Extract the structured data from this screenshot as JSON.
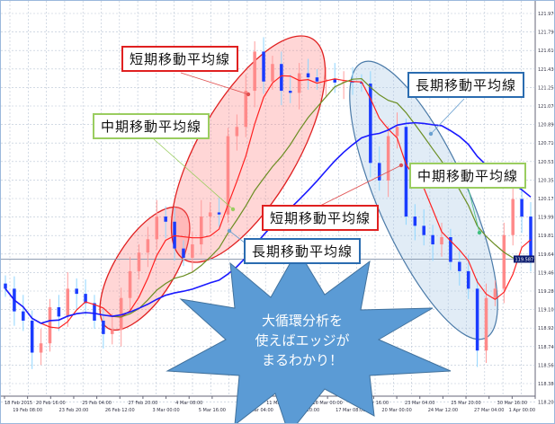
{
  "chart_data": {
    "type": "candlestick",
    "title": "",
    "y_ticks": [
      "121.970",
      "121.790",
      "121.610",
      "121.430",
      "121.250",
      "121.070",
      "120.890",
      "120.710",
      "120.535",
      "120.355",
      "120.175",
      "119.995",
      "119.815",
      "119.640",
      "119.460",
      "119.280",
      "119.100",
      "118.920",
      "118.740",
      "118.560",
      "118.380",
      "118.200"
    ],
    "ylim": [
      118.2,
      121.97
    ],
    "x_ticks": [
      "18 Feb 2015",
      "19 Feb 08:00",
      "20 Feb 16:00",
      "23 Feb 20:00",
      "25 Feb 04:00",
      "26 Feb 12:00",
      "27 Feb 20:00",
      "3 Mar 00:00",
      "4 Mar 08:00",
      "5 Mar 16:00",
      "",
      "10 Mar 04:00",
      "11 Mar 12:00",
      "12 Mar 20:00",
      "16 Mar 00:00",
      "17 Mar 08:00",
      "18 Mar 16:00",
      "20 Mar 00:00",
      "23 Mar 04:00",
      "24 Mar 12:00",
      "25 Mar 20:00",
      "27 Mar 04:00",
      "30 Mar 16:00",
      "1 Apr 00:00"
    ],
    "closes": [
      119.3,
      119.08,
      118.99,
      118.68,
      118.77,
      119.12,
      119.03,
      119.3,
      119.25,
      119.16,
      118.99,
      118.86,
      118.9,
      119.21,
      119.47,
      119.65,
      119.78,
      120.0,
      119.95,
      119.69,
      119.6,
      119.73,
      120.0,
      120.04,
      120.02,
      120.78,
      120.87,
      121.22,
      121.6,
      121.31,
      121.48,
      121.22,
      121.2,
      121.39,
      121.35,
      121.31,
      121.33,
      121.3,
      121.31,
      121.3,
      121.29,
      120.52,
      120.35,
      120.78,
      120.87,
      120.0,
      119.91,
      119.82,
      119.73,
      119.8,
      119.56,
      119.47,
      119.3,
      118.7,
      119.21,
      119.3,
      119.82,
      120.17,
      120.0,
      119.587
    ],
    "current_price": "119.587",
    "series": [
      {
        "name": "短期移動平均線",
        "period": 5,
        "color": "#ff2020"
      },
      {
        "name": "中期移動平均線",
        "period": 13,
        "color": "#6b8e23"
      },
      {
        "name": "長期移動平均線",
        "period": 25,
        "color": "#1a1aff"
      }
    ],
    "colors": {
      "up": "#ff8a8a",
      "down": "#1a3cff",
      "grid": "#b8c4d4",
      "price_tag": "#0a1a6e"
    }
  },
  "annotations": {
    "short_ma_1": "短期移動平均線",
    "mid_ma_1": "中期移動平均線",
    "long_ma_1": "長期移動平均線",
    "mid_ma_2": "中期移動平均線",
    "short_ma_2": "短期移動平均線",
    "long_ma_2": "長期移動平均線",
    "burst_lines": [
      "大循環分析を",
      "使えばエッジが",
      "まるわかり！"
    ]
  }
}
